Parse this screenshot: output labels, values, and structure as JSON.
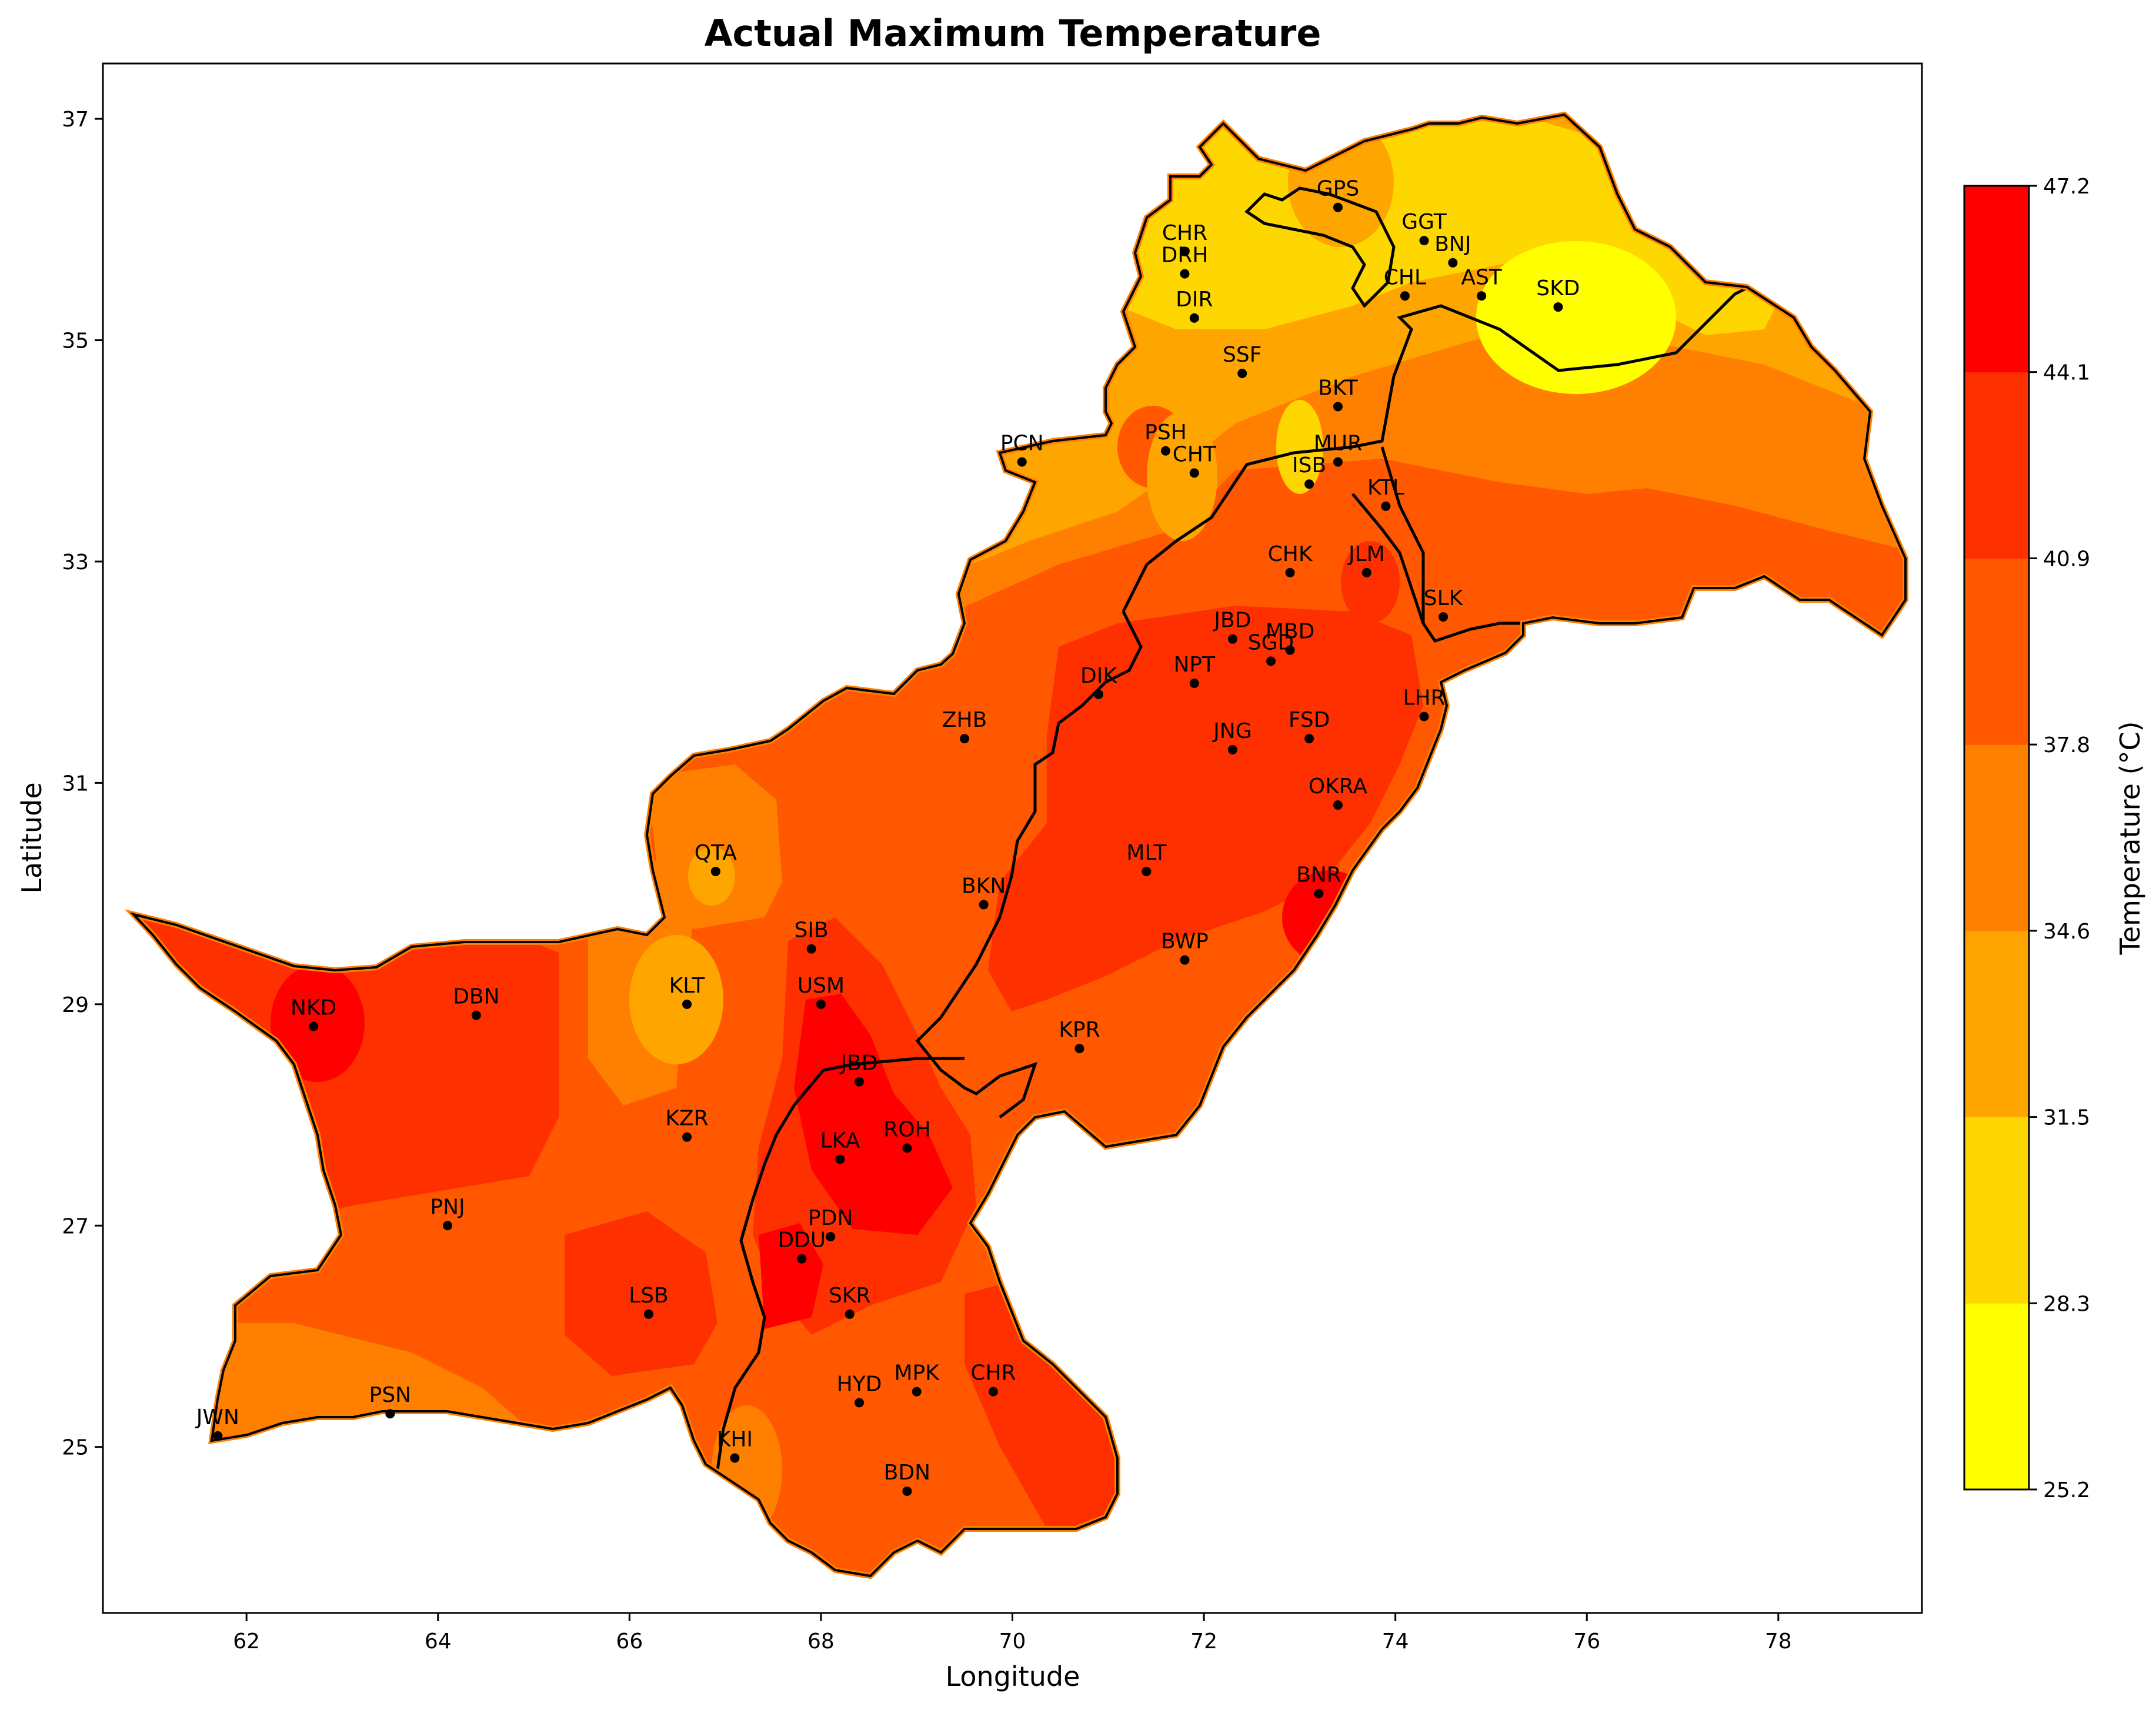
{
  "chart_data": {
    "type": "contour-map",
    "title": "Actual Maximum Temperature",
    "xlabel": "Longitude",
    "ylabel": "Latitude",
    "xlim": [
      60.5,
      79.5
    ],
    "ylim": [
      23.5,
      37.5
    ],
    "xticks": [
      62,
      64,
      66,
      68,
      70,
      72,
      74,
      76,
      78
    ],
    "yticks": [
      25,
      27,
      29,
      31,
      33,
      35,
      37
    ],
    "colorbar": {
      "label": "Temperature (°C)",
      "levels": [
        25.2,
        28.3,
        31.5,
        34.6,
        37.8,
        40.9,
        44.1,
        47.2
      ],
      "colors": [
        "#ffff00",
        "#ffd700",
        "#ffa500",
        "#ff8000",
        "#ff5800",
        "#ff3000",
        "#ff0000"
      ]
    },
    "stations": [
      {
        "name": "GPS",
        "lon": 73.4,
        "lat": 36.2
      },
      {
        "name": "GGT",
        "lon": 74.3,
        "lat": 35.9
      },
      {
        "name": "CHR",
        "lon": 71.8,
        "lat": 35.8
      },
      {
        "name": "BNJ",
        "lon": 74.6,
        "lat": 35.7
      },
      {
        "name": "DRH",
        "lon": 71.8,
        "lat": 35.6
      },
      {
        "name": "CHL",
        "lon": 74.1,
        "lat": 35.4
      },
      {
        "name": "AST",
        "lon": 74.9,
        "lat": 35.4
      },
      {
        "name": "SKD",
        "lon": 75.7,
        "lat": 35.3
      },
      {
        "name": "DIR",
        "lon": 71.9,
        "lat": 35.2
      },
      {
        "name": "SSF",
        "lon": 72.4,
        "lat": 34.7
      },
      {
        "name": "BKT",
        "lon": 73.4,
        "lat": 34.4
      },
      {
        "name": "PSH",
        "lon": 71.6,
        "lat": 34.0
      },
      {
        "name": "CHT",
        "lon": 71.9,
        "lat": 33.8
      },
      {
        "name": "PCN",
        "lon": 70.1,
        "lat": 33.9
      },
      {
        "name": "MUR",
        "lon": 73.4,
        "lat": 33.9
      },
      {
        "name": "ISB",
        "lon": 73.1,
        "lat": 33.7
      },
      {
        "name": "KTL",
        "lon": 73.9,
        "lat": 33.5
      },
      {
        "name": "CHK",
        "lon": 72.9,
        "lat": 32.9
      },
      {
        "name": "JLM",
        "lon": 73.7,
        "lat": 32.9
      },
      {
        "name": "SLK",
        "lon": 74.5,
        "lat": 32.5
      },
      {
        "name": "JBD",
        "lon": 72.3,
        "lat": 32.3
      },
      {
        "name": "MBD",
        "lon": 72.9,
        "lat": 32.2
      },
      {
        "name": "SGD",
        "lon": 72.7,
        "lat": 32.1
      },
      {
        "name": "NPT",
        "lon": 71.9,
        "lat": 31.9
      },
      {
        "name": "DIK",
        "lon": 70.9,
        "lat": 31.8
      },
      {
        "name": "LHR",
        "lon": 74.3,
        "lat": 31.6
      },
      {
        "name": "FSD",
        "lon": 73.1,
        "lat": 31.4
      },
      {
        "name": "ZHB",
        "lon": 69.5,
        "lat": 31.4
      },
      {
        "name": "JNG",
        "lon": 72.3,
        "lat": 31.3
      },
      {
        "name": "OKRA",
        "lon": 73.4,
        "lat": 30.8
      },
      {
        "name": "QTA",
        "lon": 66.9,
        "lat": 30.2
      },
      {
        "name": "MLT",
        "lon": 71.4,
        "lat": 30.2
      },
      {
        "name": "BNR",
        "lon": 73.2,
        "lat": 30.0
      },
      {
        "name": "BKN",
        "lon": 69.7,
        "lat": 29.9
      },
      {
        "name": "SIB",
        "lon": 67.9,
        "lat": 29.5
      },
      {
        "name": "BWP",
        "lon": 71.8,
        "lat": 29.4
      },
      {
        "name": "KLT",
        "lon": 66.6,
        "lat": 29.0
      },
      {
        "name": "USM",
        "lon": 68.0,
        "lat": 29.0
      },
      {
        "name": "DBN",
        "lon": 64.4,
        "lat": 28.9
      },
      {
        "name": "NKD",
        "lon": 62.7,
        "lat": 28.8
      },
      {
        "name": "KPR",
        "lon": 70.7,
        "lat": 28.6
      },
      {
        "name": "JBD",
        "lon": 68.4,
        "lat": 28.3
      },
      {
        "name": "KZR",
        "lon": 66.6,
        "lat": 27.8
      },
      {
        "name": "ROH",
        "lon": 68.9,
        "lat": 27.7
      },
      {
        "name": "LKA",
        "lon": 68.2,
        "lat": 27.6
      },
      {
        "name": "PNJ",
        "lon": 64.1,
        "lat": 27.0
      },
      {
        "name": "PDN",
        "lon": 68.1,
        "lat": 26.9
      },
      {
        "name": "DDU",
        "lon": 67.8,
        "lat": 26.7
      },
      {
        "name": "LSB",
        "lon": 66.2,
        "lat": 26.2
      },
      {
        "name": "SKR",
        "lon": 68.3,
        "lat": 26.2
      },
      {
        "name": "MPK",
        "lon": 69.0,
        "lat": 25.5
      },
      {
        "name": "CHR",
        "lon": 69.8,
        "lat": 25.5
      },
      {
        "name": "HYD",
        "lon": 68.4,
        "lat": 25.4
      },
      {
        "name": "PSN",
        "lon": 63.5,
        "lat": 25.3
      },
      {
        "name": "JWN",
        "lon": 61.7,
        "lat": 25.1
      },
      {
        "name": "KHI",
        "lon": 67.1,
        "lat": 24.9
      },
      {
        "name": "BDN",
        "lon": 68.9,
        "lat": 24.6
      }
    ]
  }
}
